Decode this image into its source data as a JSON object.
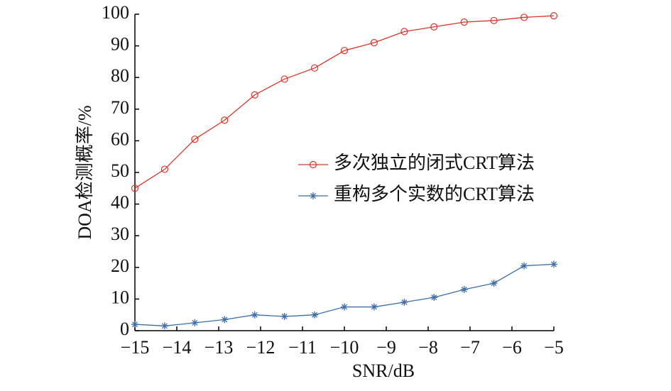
{
  "chart_data": {
    "type": "line",
    "x_label": "SNR/dB",
    "y_label": "DOA检测概率/%",
    "x": [
      -15,
      -14.29,
      -13.57,
      -12.86,
      -12.14,
      -11.43,
      -10.71,
      -10,
      -9.29,
      -8.57,
      -7.86,
      -7.14,
      -6.43,
      -5.71,
      -5
    ],
    "series": [
      {
        "name": "多次独立的闭式CRT算法",
        "color": "#d9352b",
        "marker": "circle",
        "values": [
          45,
          51,
          60.5,
          66.5,
          74.5,
          79.5,
          83,
          88.5,
          91,
          94.5,
          96,
          97.5,
          98,
          99,
          99.5
        ]
      },
      {
        "name": "重构多个实数的CRT算法",
        "color": "#3d6ea8",
        "marker": "star",
        "values": [
          2,
          1.5,
          2.5,
          3.5,
          5,
          4.5,
          5,
          7.5,
          7.5,
          9,
          10.5,
          13,
          15,
          20.5,
          21
        ]
      }
    ],
    "xlim": [
      -15,
      -5
    ],
    "xticks": [
      {
        "value": -15,
        "label": "−15"
      },
      {
        "value": -14,
        "label": "−14"
      },
      {
        "value": -13,
        "label": "−13"
      },
      {
        "value": -12,
        "label": "−12"
      },
      {
        "value": -11,
        "label": "−11"
      },
      {
        "value": -10,
        "label": "−10"
      },
      {
        "value": -9,
        "label": "−9"
      },
      {
        "value": -8,
        "label": "−8"
      },
      {
        "value": -7,
        "label": "−7"
      },
      {
        "value": -6,
        "label": "−6"
      },
      {
        "value": -5,
        "label": "−5"
      }
    ],
    "ylim": [
      0,
      100
    ],
    "yticks": [
      0,
      10,
      20,
      30,
      40,
      50,
      60,
      70,
      80,
      90,
      100
    ],
    "legend": "right"
  }
}
